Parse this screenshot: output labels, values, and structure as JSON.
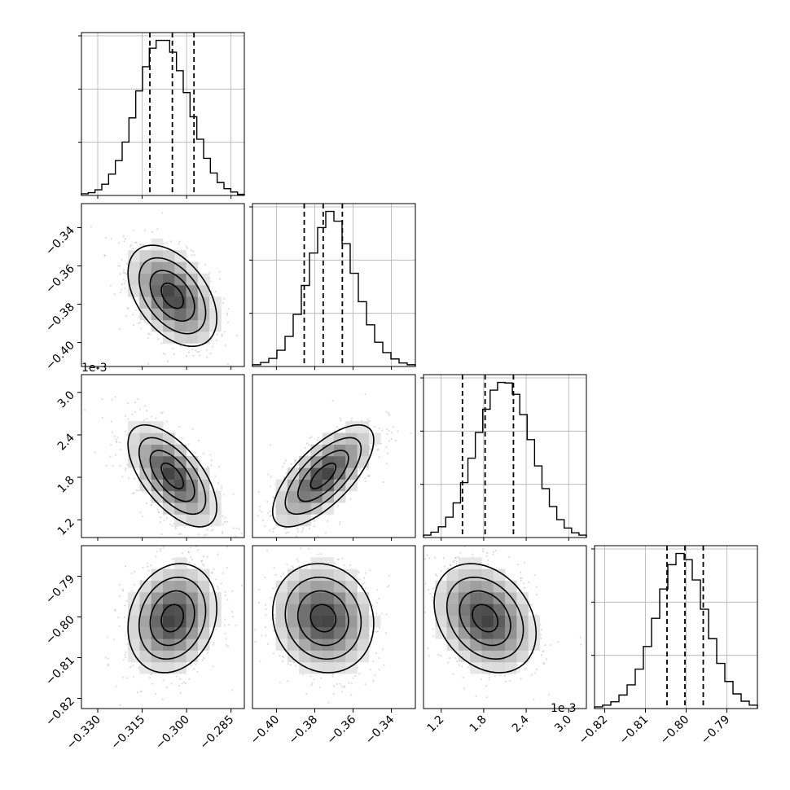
{
  "chart_data": {
    "type": "corner",
    "n_params": 4,
    "colors": {
      "line": "#000000",
      "grid": "#b0b0b0",
      "points": "#9a9a9a"
    },
    "tick_labels": [
      [
        "−0.330",
        "−0.315",
        "−0.300",
        "−0.285"
      ],
      [
        "−0.40",
        "−0.38",
        "−0.36",
        "−0.34"
      ],
      [
        "1.2",
        "1.8",
        "2.4",
        "3.0"
      ],
      [
        "−0.82",
        "−0.81",
        "−0.80",
        "−0.79"
      ]
    ],
    "y_tick_labels": [
      [],
      [
        "−0.34",
        "−0.36",
        "−0.38",
        "−0.40"
      ],
      [
        "3.0",
        "2.4",
        "1.8",
        "1.2"
      ],
      [
        "−0.79",
        "−0.80",
        "−0.81",
        "−0.82"
      ]
    ],
    "ticks": [
      [
        -0.33,
        -0.315,
        -0.3,
        -0.285
      ],
      [
        -0.4,
        -0.38,
        -0.36,
        -0.34
      ],
      [
        1.2,
        1.8,
        2.4,
        3.0
      ],
      [
        -0.82,
        -0.81,
        -0.8,
        -0.79
      ]
    ],
    "ranges": [
      [
        -0.3355,
        -0.2805
      ],
      [
        -0.4125,
        -0.3275
      ],
      [
        0.95,
        3.25
      ],
      [
        -0.8225,
        -0.7825
      ]
    ],
    "offset_texts": {
      "param3_y": "1e-3",
      "param3_x": "1e-3"
    },
    "histograms": [
      {
        "edges_range": [
          -0.3355,
          -0.2805
        ],
        "counts": [
          3,
          5,
          10,
          20,
          38,
          62,
          95,
          138,
          186,
          229,
          262,
          276,
          276,
          255,
          222,
          183,
          140,
          100,
          66,
          40,
          23,
          12,
          6,
          2
        ],
        "quantiles": [
          -0.3124,
          -0.3048,
          -0.2975
        ]
      },
      {
        "edges_range": [
          -0.4125,
          -0.3275
        ],
        "counts": [
          3,
          7,
          14,
          28,
          52,
          90,
          140,
          196,
          240,
          268,
          251,
          212,
          161,
          112,
          72,
          42,
          24,
          13,
          6,
          3
        ],
        "quantiles": [
          -0.3855,
          -0.3756,
          -0.3656
        ]
      },
      {
        "edges_range": [
          0.95,
          3.25
        ],
        "counts": [
          4,
          9,
          18,
          34,
          58,
          92,
          133,
          176,
          215,
          247,
          260,
          259,
          240,
          206,
          164,
          120,
          82,
          52,
          30,
          16,
          8,
          4
        ],
        "quantiles": [
          1.5,
          1.82,
          2.22
        ]
      },
      {
        "edges_range": [
          -0.8225,
          -0.7825
        ],
        "counts": [
          3,
          6,
          12,
          24,
          42,
          70,
          110,
          160,
          212,
          255,
          275,
          264,
          228,
          176,
          124,
          80,
          48,
          26,
          13,
          6
        ],
        "quantiles": [
          -0.8047,
          -0.8003,
          -0.7958
        ]
      }
    ],
    "pairs": [
      {
        "row": 1,
        "col": 0,
        "mean": [
          -0.3048,
          -0.3756
        ],
        "sd": [
          0.0075,
          0.0132
        ],
        "rho": -0.45
      },
      {
        "row": 2,
        "col": 0,
        "mean": [
          -0.3048,
          1.82
        ],
        "sd": [
          0.0075,
          0.36
        ],
        "rho": -0.62
      },
      {
        "row": 2,
        "col": 1,
        "mean": [
          -0.3756,
          1.82
        ],
        "sd": [
          0.0132,
          0.36
        ],
        "rho": 0.7
      },
      {
        "row": 3,
        "col": 0,
        "mean": [
          -0.3048,
          -0.8003
        ],
        "sd": [
          0.0075,
          0.0067
        ],
        "rho": 0.18
      },
      {
        "row": 3,
        "col": 1,
        "mean": [
          -0.3756,
          -0.8003
        ],
        "sd": [
          0.0132,
          0.0067
        ],
        "rho": -0.1
      },
      {
        "row": 3,
        "col": 2,
        "mean": [
          1.82,
          -0.8003
        ],
        "sd": [
          0.36,
          0.0067
        ],
        "rho": -0.28
      }
    ]
  }
}
